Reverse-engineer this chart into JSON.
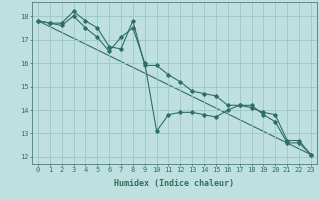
{
  "xlabel": "Humidex (Indice chaleur)",
  "bg_color": "#c0e0e0",
  "grid_color": "#98c8c8",
  "line_color": "#2e7060",
  "xlim": [
    -0.5,
    23.5
  ],
  "ylim": [
    11.7,
    18.6
  ],
  "yticks": [
    12,
    13,
    14,
    15,
    16,
    17,
    18
  ],
  "xticks": [
    0,
    1,
    2,
    3,
    4,
    5,
    6,
    7,
    8,
    9,
    10,
    11,
    12,
    13,
    14,
    15,
    16,
    17,
    18,
    19,
    20,
    21,
    22,
    23
  ],
  "series1_x": [
    0,
    1,
    2,
    3,
    4,
    5,
    6,
    7,
    8,
    9,
    10,
    11,
    12,
    13,
    14,
    15,
    16,
    17,
    18,
    19,
    20,
    21,
    22,
    23
  ],
  "series1_y": [
    17.8,
    17.7,
    17.7,
    18.2,
    17.8,
    17.5,
    16.7,
    16.6,
    17.8,
    15.9,
    15.9,
    15.5,
    15.2,
    14.8,
    14.7,
    14.6,
    14.2,
    14.2,
    14.1,
    13.9,
    13.8,
    12.7,
    12.7,
    12.1
  ],
  "series2_x": [
    0,
    1,
    2,
    3,
    4,
    5,
    6,
    7,
    8,
    9,
    10,
    11,
    12,
    13,
    14,
    15,
    16,
    17,
    18,
    19,
    20,
    21,
    22,
    23
  ],
  "series2_y": [
    17.8,
    17.7,
    17.6,
    18.0,
    17.5,
    17.1,
    16.5,
    17.1,
    17.5,
    16.0,
    13.1,
    13.8,
    13.9,
    13.9,
    13.8,
    13.7,
    14.0,
    14.2,
    14.2,
    13.8,
    13.5,
    12.6,
    12.6,
    12.1
  ],
  "series3_x": [
    0,
    23
  ],
  "series3_y": [
    17.8,
    12.1
  ],
  "tick_fontsize": 5.0,
  "xlabel_fontsize": 6.0,
  "marker_size": 1.8,
  "line_width": 0.8
}
